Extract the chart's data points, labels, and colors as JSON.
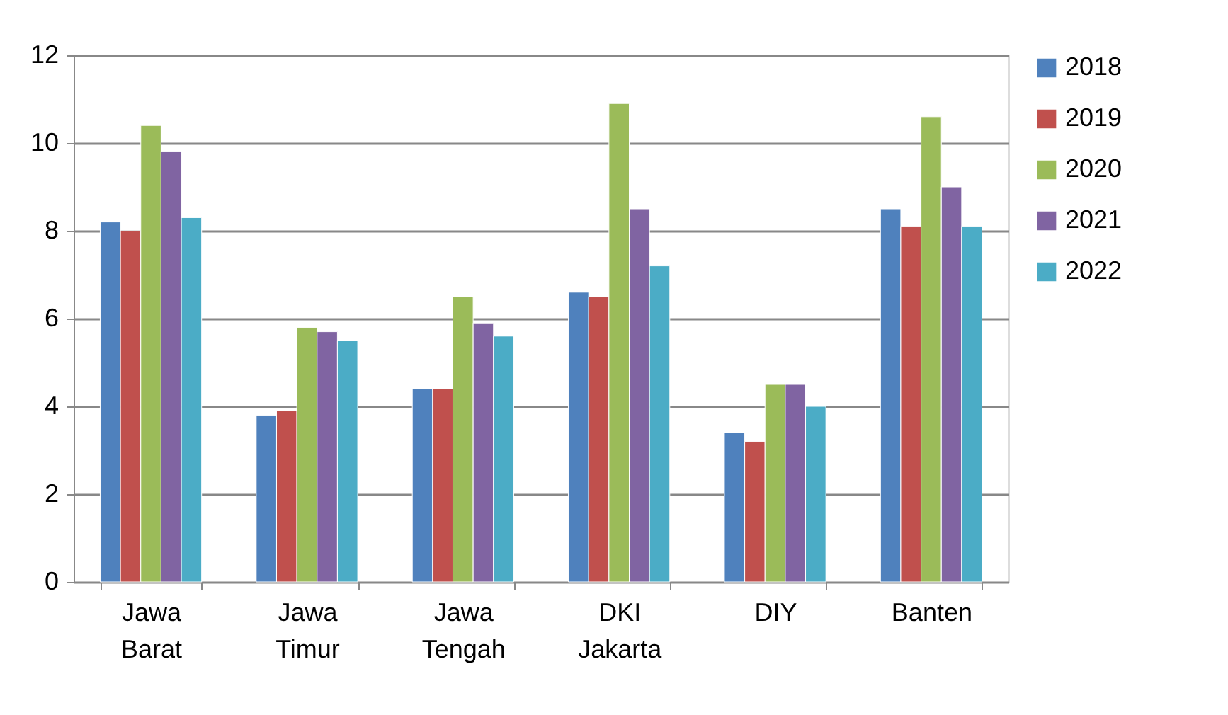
{
  "chart_data": {
    "type": "bar",
    "categories": [
      "Jawa Barat",
      "Jawa Timur",
      "Jawa Tengah",
      "DKI Jakarta",
      "DIY",
      "Banten"
    ],
    "series": [
      {
        "name": "2018",
        "color": "#4f81bd",
        "values": [
          8.2,
          3.8,
          4.4,
          6.6,
          3.4,
          8.5
        ]
      },
      {
        "name": "2019",
        "color": "#c0504d",
        "values": [
          8.0,
          3.9,
          4.4,
          6.5,
          3.2,
          8.1
        ]
      },
      {
        "name": "2020",
        "color": "#9bbb59",
        "values": [
          10.4,
          5.8,
          6.5,
          10.9,
          4.5,
          10.6
        ]
      },
      {
        "name": "2021",
        "color": "#8064a2",
        "values": [
          9.8,
          5.7,
          5.9,
          8.5,
          4.5,
          9.0
        ]
      },
      {
        "name": "2022",
        "color": "#4bacc6",
        "values": [
          8.3,
          5.5,
          5.6,
          7.2,
          4.0,
          8.1
        ]
      }
    ],
    "ylim": [
      0,
      12
    ],
    "yticks": [
      0,
      2,
      4,
      6,
      8,
      10,
      12
    ],
    "grid": "y",
    "legend": "right"
  }
}
